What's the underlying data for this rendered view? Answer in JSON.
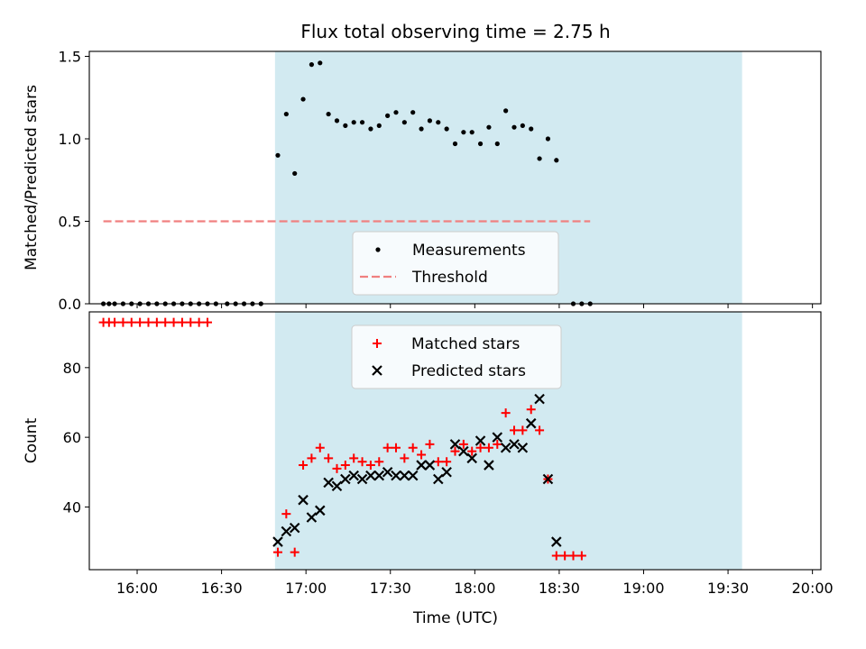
{
  "chart_data": {
    "title": "Flux total observing time = 2.75 h",
    "xlabel": "Time (UTC)",
    "x_axis": {
      "type": "time",
      "range": [
        "15:43",
        "20:03"
      ],
      "ticks": [
        "16:00",
        "16:30",
        "17:00",
        "17:30",
        "18:00",
        "18:30",
        "19:00",
        "19:30",
        "20:00"
      ]
    },
    "shaded_interval": {
      "start": "16:49",
      "end": "19:35",
      "color": "#add8e6"
    },
    "panels": [
      {
        "type": "scatter",
        "ylabel": "Matched/Predicted stars",
        "ylim": [
          0,
          1.53
        ],
        "yticks": [
          "0.0",
          "0.5",
          "1.0",
          "1.5"
        ],
        "legend_position": "lower-center",
        "series": [
          {
            "name": "Measurements",
            "marker": "dot",
            "color": "#000000",
            "points": [
              [
                "15:48",
                0
              ],
              [
                "15:50",
                0
              ],
              [
                "15:52",
                0
              ],
              [
                "15:55",
                0
              ],
              [
                "15:58",
                0
              ],
              [
                "16:01",
                0
              ],
              [
                "16:04",
                0
              ],
              [
                "16:07",
                0
              ],
              [
                "16:10",
                0
              ],
              [
                "16:13",
                0
              ],
              [
                "16:16",
                0
              ],
              [
                "16:19",
                0
              ],
              [
                "16:22",
                0
              ],
              [
                "16:25",
                0
              ],
              [
                "16:28",
                0
              ],
              [
                "16:32",
                0
              ],
              [
                "16:35",
                0
              ],
              [
                "16:38",
                0
              ],
              [
                "16:41",
                0
              ],
              [
                "16:44",
                0
              ],
              [
                "16:50",
                0.9
              ],
              [
                "16:53",
                1.15
              ],
              [
                "16:56",
                0.79
              ],
              [
                "16:59",
                1.24
              ],
              [
                "17:02",
                1.45
              ],
              [
                "17:05",
                1.46
              ],
              [
                "17:08",
                1.15
              ],
              [
                "17:11",
                1.11
              ],
              [
                "17:14",
                1.08
              ],
              [
                "17:17",
                1.1
              ],
              [
                "17:20",
                1.1
              ],
              [
                "17:23",
                1.06
              ],
              [
                "17:26",
                1.08
              ],
              [
                "17:29",
                1.14
              ],
              [
                "17:32",
                1.16
              ],
              [
                "17:35",
                1.1
              ],
              [
                "17:38",
                1.16
              ],
              [
                "17:41",
                1.06
              ],
              [
                "17:44",
                1.11
              ],
              [
                "17:47",
                1.1
              ],
              [
                "17:50",
                1.06
              ],
              [
                "17:53",
                0.97
              ],
              [
                "17:56",
                1.04
              ],
              [
                "17:59",
                1.04
              ],
              [
                "18:02",
                0.97
              ],
              [
                "18:05",
                1.07
              ],
              [
                "18:08",
                0.97
              ],
              [
                "18:11",
                1.17
              ],
              [
                "18:14",
                1.07
              ],
              [
                "18:17",
                1.08
              ],
              [
                "18:20",
                1.06
              ],
              [
                "18:23",
                0.88
              ],
              [
                "18:26",
                1.0
              ],
              [
                "18:29",
                0.87
              ],
              [
                "18:35",
                0
              ],
              [
                "18:38",
                0
              ],
              [
                "18:41",
                0
              ]
            ]
          },
          {
            "name": "Threshold",
            "marker": "dashed-line",
            "color": "#f08080",
            "points": [
              [
                "15:48",
                0.5
              ],
              [
                "18:41",
                0.5
              ]
            ]
          }
        ]
      },
      {
        "type": "scatter",
        "ylabel": "Count",
        "ylim": [
          22,
          96
        ],
        "yticks": [
          "40",
          "60",
          "80"
        ],
        "legend_position": "upper-center",
        "series": [
          {
            "name": "Matched stars",
            "marker": "plus",
            "color": "#ff0000",
            "points": [
              [
                "15:48",
                93
              ],
              [
                "15:50",
                93
              ],
              [
                "15:52",
                93
              ],
              [
                "15:55",
                93
              ],
              [
                "15:58",
                93
              ],
              [
                "16:01",
                93
              ],
              [
                "16:04",
                93
              ],
              [
                "16:07",
                93
              ],
              [
                "16:10",
                93
              ],
              [
                "16:13",
                93
              ],
              [
                "16:16",
                93
              ],
              [
                "16:19",
                93
              ],
              [
                "16:22",
                93
              ],
              [
                "16:25",
                93
              ],
              [
                "16:50",
                27
              ],
              [
                "16:53",
                38
              ],
              [
                "16:56",
                27
              ],
              [
                "16:59",
                52
              ],
              [
                "17:02",
                54
              ],
              [
                "17:05",
                57
              ],
              [
                "17:08",
                54
              ],
              [
                "17:11",
                51
              ],
              [
                "17:14",
                52
              ],
              [
                "17:17",
                54
              ],
              [
                "17:20",
                53
              ],
              [
                "17:23",
                52
              ],
              [
                "17:26",
                53
              ],
              [
                "17:29",
                57
              ],
              [
                "17:32",
                57
              ],
              [
                "17:35",
                54
              ],
              [
                "17:38",
                57
              ],
              [
                "17:41",
                55
              ],
              [
                "17:44",
                58
              ],
              [
                "17:47",
                53
              ],
              [
                "17:50",
                53
              ],
              [
                "17:53",
                56
              ],
              [
                "17:56",
                58
              ],
              [
                "17:59",
                56
              ],
              [
                "18:02",
                57
              ],
              [
                "18:05",
                57
              ],
              [
                "18:08",
                58
              ],
              [
                "18:11",
                67
              ],
              [
                "18:14",
                62
              ],
              [
                "18:17",
                62
              ],
              [
                "18:20",
                68
              ],
              [
                "18:23",
                62
              ],
              [
                "18:26",
                48
              ],
              [
                "18:29",
                26
              ],
              [
                "18:32",
                26
              ],
              [
                "18:35",
                26
              ],
              [
                "18:38",
                26
              ]
            ]
          },
          {
            "name": "Predicted stars",
            "marker": "x",
            "color": "#000000",
            "points": [
              [
                "16:50",
                30
              ],
              [
                "16:53",
                33
              ],
              [
                "16:56",
                34
              ],
              [
                "16:59",
                42
              ],
              [
                "17:02",
                37
              ],
              [
                "17:05",
                39
              ],
              [
                "17:08",
                47
              ],
              [
                "17:11",
                46
              ],
              [
                "17:14",
                48
              ],
              [
                "17:17",
                49
              ],
              [
                "17:20",
                48
              ],
              [
                "17:23",
                49
              ],
              [
                "17:26",
                49
              ],
              [
                "17:29",
                50
              ],
              [
                "17:32",
                49
              ],
              [
                "17:35",
                49
              ],
              [
                "17:38",
                49
              ],
              [
                "17:41",
                52
              ],
              [
                "17:44",
                52
              ],
              [
                "17:47",
                48
              ],
              [
                "17:50",
                50
              ],
              [
                "17:53",
                58
              ],
              [
                "17:56",
                56
              ],
              [
                "17:59",
                54
              ],
              [
                "18:02",
                59
              ],
              [
                "18:05",
                52
              ],
              [
                "18:08",
                60
              ],
              [
                "18:11",
                57
              ],
              [
                "18:14",
                58
              ],
              [
                "18:17",
                57
              ],
              [
                "18:20",
                64
              ],
              [
                "18:23",
                71
              ],
              [
                "18:26",
                48
              ],
              [
                "18:29",
                30
              ]
            ]
          }
        ]
      }
    ]
  }
}
